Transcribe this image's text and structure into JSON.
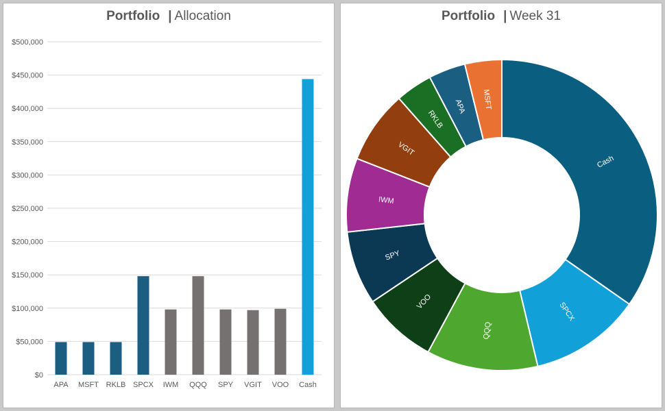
{
  "charts": {
    "left": {
      "title_bold": "Portfolio",
      "separator": "|",
      "title_rest": "Allocation"
    },
    "right": {
      "title_bold": "Portfolio",
      "separator": "|",
      "title_rest": "Week 31"
    }
  },
  "colors": {
    "dark_blue": "#1b5e82",
    "gray": "#767171",
    "light_blue": "#12a0d8",
    "grid": "#d9d9d9",
    "axis_text": "#595959"
  },
  "chart_data": [
    {
      "type": "bar",
      "title": "Portfolio | Allocation",
      "categories": [
        "APA",
        "MSFT",
        "RKLB",
        "SPCX",
        "IWM",
        "QQQ",
        "SPY",
        "VGIT",
        "VOO",
        "Cash"
      ],
      "values": [
        49000,
        49000,
        49000,
        148000,
        98000,
        148000,
        98000,
        97000,
        99000,
        444000
      ],
      "bar_colors": [
        "#1b5e82",
        "#1b5e82",
        "#1b5e82",
        "#1b5e82",
        "#767171",
        "#767171",
        "#767171",
        "#767171",
        "#767171",
        "#12a0d8"
      ],
      "ylim": [
        0,
        500000
      ],
      "yticks": [
        0,
        50000,
        100000,
        150000,
        200000,
        250000,
        300000,
        350000,
        400000,
        450000,
        500000
      ],
      "ytick_labels": [
        "$0",
        "$50,000",
        "$100,000",
        "$150,000",
        "$200,000",
        "$250,000",
        "$300,000",
        "$350,000",
        "$400,000",
        "$450,000",
        "$500,000"
      ],
      "grid": true,
      "legend": "none"
    },
    {
      "type": "pie",
      "style": "donut",
      "title": "Portfolio | Week 31",
      "labels": [
        "Cash",
        "SPCX",
        "QQQ",
        "VOO",
        "SPY",
        "IWM",
        "VGIT",
        "RKLB",
        "APA",
        "MSFT"
      ],
      "values": [
        444000,
        148000,
        148000,
        99000,
        98000,
        98000,
        97000,
        49000,
        49000,
        49000
      ],
      "colors": [
        "#0a5f80",
        "#12a0d8",
        "#4ea72e",
        "#0f3f17",
        "#0b3954",
        "#a02b93",
        "#933e0f",
        "#1a6f24",
        "#1a5e82",
        "#e97132"
      ],
      "start_angle_deg": 0,
      "direction": "clockwise",
      "legend": "none"
    }
  ]
}
